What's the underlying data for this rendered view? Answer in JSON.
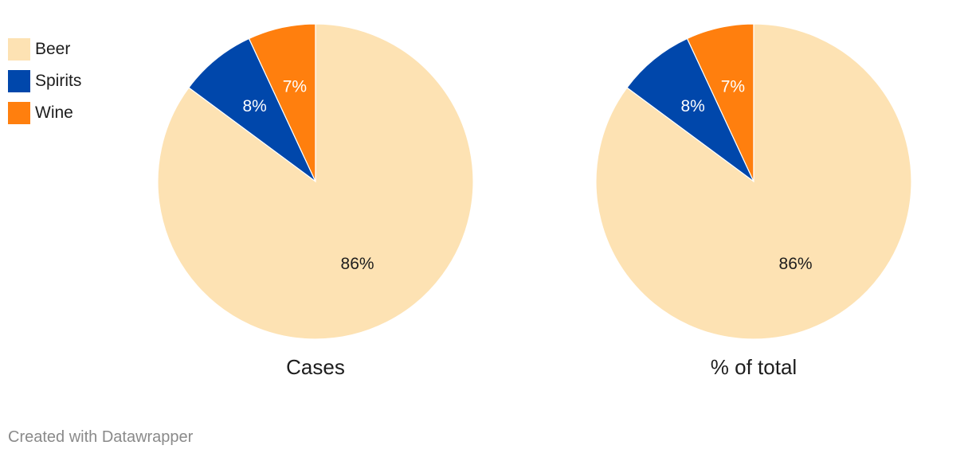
{
  "legend": [
    {
      "label": "Beer",
      "color": "#fde2b3"
    },
    {
      "label": "Spirits",
      "color": "#0047ab"
    },
    {
      "label": "Wine",
      "color": "#ff7f0e"
    }
  ],
  "chart_data": [
    {
      "type": "pie",
      "title": "Cases",
      "slices": [
        {
          "label": "Beer",
          "value": 86,
          "display": "86%",
          "color": "#fde2b3",
          "label_color": "#1d1d1d"
        },
        {
          "label": "Spirits",
          "value": 8,
          "display": "8%",
          "color": "#0047ab",
          "label_color": "#ffffff"
        },
        {
          "label": "Wine",
          "value": 7,
          "display": "7%",
          "color": "#ff7f0e",
          "label_color": "#ffffff"
        }
      ]
    },
    {
      "type": "pie",
      "title": "% of total",
      "slices": [
        {
          "label": "Beer",
          "value": 86,
          "display": "86%",
          "color": "#fde2b3",
          "label_color": "#1d1d1d"
        },
        {
          "label": "Spirits",
          "value": 8,
          "display": "8%",
          "color": "#0047ab",
          "label_color": "#ffffff"
        },
        {
          "label": "Wine",
          "value": 7,
          "display": "7%",
          "color": "#ff7f0e",
          "label_color": "#ffffff"
        }
      ]
    }
  ],
  "footer": "Created with Datawrapper"
}
